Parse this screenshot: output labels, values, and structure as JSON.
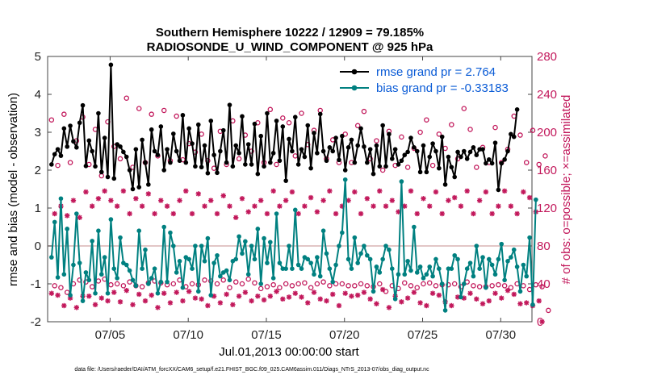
{
  "chart_data": {
    "type": "line",
    "title": "Southern Hemisphere 10222 / 12909 = 79.185%",
    "subtitle": "RADIOSONDE_U_WIND_COMPONENT @ 925 hPa",
    "xlabel": "Jul.01,2013 00:00:00 start",
    "ylabel": "rmse and bias (model - observation)",
    "ylabel_right": "# of obs: o=possible; ×=assimilated",
    "footer": "data file: /Users/raeder/DAI/ATM_forcXX/CAM6_setup/f.e21.FHIST_BGC.f09_025.CAM6assim.011/Diags_NTrS_2013-07/obs_diag_output.nc",
    "xlim": [
      0,
      62
    ],
    "ylim": [
      -2,
      5
    ],
    "ylim_right": [
      0,
      280
    ],
    "x_ticks": [
      {
        "value": 8,
        "label": "07/05"
      },
      {
        "value": 18,
        "label": "07/10"
      },
      {
        "value": 28,
        "label": "07/15"
      },
      {
        "value": 38,
        "label": "07/20"
      },
      {
        "value": 48,
        "label": "07/25"
      },
      {
        "value": 58,
        "label": "07/30"
      }
    ],
    "y_ticks": [
      -2,
      -1,
      0,
      1,
      2,
      3,
      4,
      5
    ],
    "y_ticks_right": [
      0,
      40,
      80,
      120,
      160,
      200,
      240,
      280
    ],
    "zero_line": 0,
    "legend": [
      {
        "name": "rmse grand pr = 2.764",
        "color": "#000000",
        "marker": "filled-circle"
      },
      {
        "name": "bias grand pr = -0.33183",
        "color": "#008080",
        "marker": "filled-circle"
      }
    ],
    "legend_position": "top-right",
    "colors": {
      "rmse": "#000000",
      "bias": "#008080",
      "obs": "#c2185b",
      "zero": "#d8b4b4"
    },
    "series": [
      {
        "name": "rmse",
        "axis": "left",
        "values": [
          2.15,
          2.42,
          2.55,
          2.38,
          3.1,
          2.62,
          3.17,
          2.76,
          2.6,
          3.25,
          3.71,
          2.11,
          2.78,
          2.5,
          2.1,
          3.5,
          1.95,
          2.85,
          1.82,
          4.78,
          1.78,
          2.68,
          2.62,
          2.48,
          2.35,
          2.0,
          1.5,
          2.55,
          1.55,
          2.8,
          2.2,
          1.62,
          3.07,
          2.5,
          2.4,
          3.15,
          2.0,
          2.55,
          2.2,
          2.96,
          2.5,
          2.25,
          3.45,
          2.2,
          3.1,
          2.7,
          2.1,
          3.2,
          2.08,
          2.65,
          1.92,
          3.3,
          2.4,
          1.93,
          2.5,
          3.05,
          2.2,
          3.72,
          2.1,
          2.65,
          2.45,
          3.42,
          2.15,
          2.68,
          2.15,
          3.22,
          1.9,
          2.9,
          2.1,
          3.5,
          2.2,
          2.45,
          3.3,
          2.25,
          3.15,
          1.72,
          2.82,
          2.5,
          3.4,
          2.15,
          2.55,
          2.35,
          3.18,
          2.05,
          2.98,
          2.45,
          3.48,
          2.5,
          2.25,
          2.6,
          2.5,
          2.85,
          2.27,
          2.9,
          2.0,
          2.6,
          2.8,
          2.2,
          2.65,
          3.1,
          2.62,
          2.2,
          2.55,
          1.9,
          2.65,
          2.1,
          3.18,
          2.1,
          2.95,
          2.3,
          2.55,
          2.15,
          2.25,
          2.4,
          2.48,
          2.85,
          2.6,
          2.5,
          1.95,
          2.65,
          1.95,
          2.35,
          2.7,
          2.5,
          2.05,
          2.88,
          1.62,
          2.35,
          2.08,
          1.82,
          2.48,
          2.35,
          2.5,
          2.3,
          2.48,
          2.6,
          2.4,
          2.55,
          2.55,
          2.18,
          2.28,
          2.18,
          2.72,
          1.48,
          2.18,
          2.28,
          2.5,
          2.95,
          2.88,
          3.6
        ]
      },
      {
        "name": "bias",
        "axis": "left",
        "values": [
          -0.3,
          0.63,
          -0.83,
          1.25,
          -0.75,
          0.45,
          -1.3,
          -0.5,
          0.85,
          -0.45,
          -1.45,
          -0.7,
          -0.9,
          0.13,
          -1.25,
          0.4,
          -0.75,
          -0.3,
          -1.25,
          0.7,
          -0.6,
          -0.85,
          0.22,
          -0.45,
          -0.5,
          -0.65,
          -0.9,
          -1.05,
          0.4,
          -0.6,
          -0.1,
          -1.0,
          -0.85,
          -0.6,
          -1.25,
          -0.95,
          0.5,
          -0.95,
          0.35,
          0.0,
          -0.7,
          -0.4,
          -1.1,
          -0.3,
          -0.35,
          -0.6,
          0.0,
          -1.2,
          0.0,
          -0.4,
          0.2,
          -1.3,
          -0.45,
          -0.25,
          -0.8,
          -0.7,
          -0.65,
          -0.9,
          -0.4,
          -0.35,
          0.25,
          -0.2,
          0.12,
          -0.75,
          0.0,
          -0.35,
          0.45,
          -1.0,
          0.2,
          -0.45,
          0.1,
          -0.85,
          0.85,
          -0.45,
          -0.6,
          -0.6,
          0.0,
          -0.6,
          0.95,
          -0.5,
          -0.6,
          -0.3,
          -0.35,
          -0.45,
          -0.75,
          -0.3,
          -0.8,
          0.4,
          -0.2,
          -0.6,
          -0.95,
          -0.5,
          0.0,
          0.35,
          1.75,
          -0.35,
          -0.6,
          0.22,
          -0.45,
          -0.2,
          0.0,
          -0.25,
          -0.35,
          -1.2,
          -0.55,
          -0.7,
          -0.35,
          0.0,
          -0.1,
          -0.6,
          -1.4,
          -0.75,
          1.7,
          -0.75,
          -0.4,
          -0.65,
          0.5,
          -0.7,
          -0.55,
          -0.85,
          -0.75,
          -0.55,
          -0.8,
          -0.35,
          -0.6,
          -1.0,
          -1.7,
          -0.6,
          -0.6,
          -0.25,
          -0.35,
          -1.35,
          -1.0,
          -0.6,
          -0.45,
          -0.8,
          0.0,
          -0.6,
          -0.3,
          -1.1,
          -0.35,
          -0.5,
          -0.75,
          -0.35,
          0.05,
          -0.9,
          -0.4,
          -0.3,
          -0.1,
          -0.55,
          -1.2,
          -0.5,
          -0.8,
          0.22,
          -1.55,
          1.22
        ]
      },
      {
        "name": "possible",
        "axis": "right",
        "values": [
          213,
          38,
          165,
          36,
          219,
          31,
          168,
          40,
          191,
          44,
          216,
          42,
          166,
          37,
          203,
          43,
          154,
          45,
          211,
          39,
          185,
          40,
          172,
          38,
          236,
          42,
          163,
          38,
          225,
          37,
          168,
          41,
          219,
          43,
          175,
          41,
          223,
          39,
          170,
          40,
          217,
          44,
          171,
          37,
          188,
          40,
          179,
          39,
          198,
          44,
          170,
          43,
          162,
          40,
          201,
          44,
          166,
          36,
          212,
          42,
          172,
          40,
          197,
          45,
          180,
          41,
          210,
          35,
          168,
          37,
          224,
          39,
          166,
          36,
          215,
          40,
          210,
          38,
          175,
          40,
          220,
          41,
          187,
          36,
          202,
          40,
          223,
          42,
          172,
          38,
          192,
          40,
          168,
          40,
          198,
          38,
          168,
          38,
          207,
          40,
          222,
          38,
          172,
          37,
          191,
          40,
          160,
          32,
          201,
          38,
          165,
          35,
          195,
          41,
          163,
          38,
          183,
          36,
          200,
          40,
          213,
          41,
          165,
          38,
          198,
          39,
          183,
          39,
          208,
          40,
          172,
          37,
          225,
          42,
          203,
          38,
          163,
          37,
          184,
          37,
          168,
          38,
          205,
          39,
          168,
          38,
          182,
          36,
          217,
          40,
          197,
          38,
          168,
          34,
          202,
          39,
          166,
          37,
          175,
          12
        ]
      },
      {
        "name": "assimilated",
        "axis": "right",
        "values": [
          30,
          114,
          28,
          122,
          17,
          112,
          25,
          128,
          15,
          110,
          27,
          137,
          27,
          122,
          18,
          130,
          25,
          138,
          22,
          128,
          31,
          122,
          21,
          138,
          33,
          114,
          18,
          130,
          29,
          122,
          22,
          135,
          28,
          114,
          15,
          128,
          30,
          122,
          20,
          114,
          31,
          128,
          22,
          138,
          32,
          114,
          25,
          135,
          24,
          122,
          17,
          128,
          27,
          114,
          20,
          133,
          29,
          122,
          18,
          110,
          27,
          130,
          31,
          116,
          22,
          122,
          27,
          128,
          23,
          114,
          27,
          138,
          32,
          122,
          24,
          128,
          26,
          137,
          30,
          114,
          26,
          122,
          20,
          131,
          31,
          116,
          24,
          128,
          22,
          138,
          29,
          114,
          17,
          122,
          30,
          128,
          27,
          137,
          28,
          114,
          31,
          130,
          24,
          122,
          19,
          138,
          34,
          122,
          15,
          128,
          27,
          116,
          21,
          122,
          25,
          138,
          31,
          114,
          20,
          130,
          17,
          122,
          30,
          137,
          28,
          114,
          21,
          128,
          17,
          131,
          26,
          122,
          25,
          138,
          30,
          114,
          24,
          128,
          19,
          137,
          22,
          114,
          30,
          122,
          25,
          138,
          33,
          122,
          29,
          114,
          19,
          137,
          20,
          131,
          17,
          116,
          22,
          0
        ]
      }
    ]
  }
}
